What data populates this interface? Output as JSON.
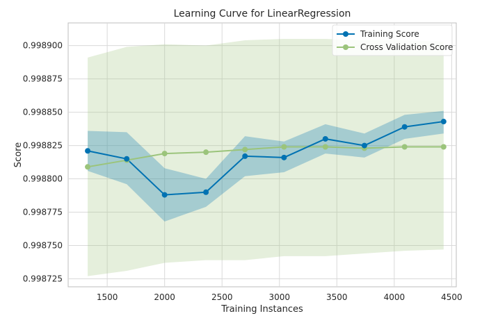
{
  "chart_data": {
    "type": "line",
    "title": "Learning Curve for LinearRegression",
    "xlabel": "Training Instances",
    "ylabel": "Score",
    "xlim": [
      1160,
      4540
    ],
    "ylim": [
      0.998719,
      0.998917
    ],
    "xticks": [
      1500,
      2000,
      2500,
      3000,
      3500,
      4000,
      4500
    ],
    "yticks": [
      0.998725,
      0.99875,
      0.998775,
      0.9988,
      0.998825,
      0.99885,
      0.998875,
      0.9989
    ],
    "xtick_labels": [
      "1500",
      "2000",
      "2500",
      "3000",
      "3500",
      "4000",
      "4500"
    ],
    "ytick_labels": [
      "0.998725",
      "0.998750",
      "0.998775",
      "0.998800",
      "0.998825",
      "0.998850",
      "0.998875",
      "0.998900"
    ],
    "grid": true,
    "legend_position": "top-right",
    "x": [
      1330,
      1670,
      2000,
      2360,
      2700,
      3040,
      3400,
      3740,
      4090,
      4430
    ],
    "series": [
      {
        "name": "Training Score",
        "color": "#0072b2",
        "band_color": "#0072b2",
        "values": [
          0.998821,
          0.998815,
          0.998788,
          0.99879,
          0.998817,
          0.998816,
          0.99883,
          0.998825,
          0.998839,
          0.998843
        ],
        "upper": [
          0.998836,
          0.998835,
          0.998808,
          0.9988,
          0.998832,
          0.998828,
          0.998841,
          0.998834,
          0.998848,
          0.998851
        ],
        "lower": [
          0.998806,
          0.998796,
          0.998768,
          0.998779,
          0.998802,
          0.998805,
          0.998819,
          0.998816,
          0.99883,
          0.998834
        ]
      },
      {
        "name": "Cross Validation Score",
        "color": "#9bc47b",
        "band_color": "#a8c98a",
        "values": [
          0.998809,
          0.998814,
          0.998819,
          0.99882,
          0.998822,
          0.998824,
          0.998824,
          0.998823,
          0.998824,
          0.998824
        ],
        "upper": [
          0.998891,
          0.998899,
          0.998901,
          0.9989,
          0.998904,
          0.998905,
          0.998905,
          0.998904,
          0.998904,
          0.998903
        ],
        "lower": [
          0.998727,
          0.998731,
          0.998737,
          0.998739,
          0.998739,
          0.998742,
          0.998742,
          0.998744,
          0.998746,
          0.998747
        ]
      }
    ]
  }
}
